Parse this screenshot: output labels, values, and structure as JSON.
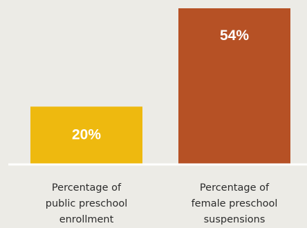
{
  "chart_data": {
    "type": "bar",
    "title": "",
    "xlabel": "",
    "ylabel": "",
    "categories": [
      [
        "Percentage of",
        "public preschool",
        "enrollment"
      ],
      [
        "Percentage of",
        "female preschool",
        "suspensions"
      ]
    ],
    "values": [
      20,
      54
    ],
    "value_labels": [
      "20%",
      "54%"
    ],
    "colors": [
      "#eeb90f",
      "#b65125"
    ],
    "ylim": [
      0,
      54
    ],
    "grid": false,
    "legend": "none"
  },
  "colors": {
    "background": "#ecebe6",
    "baseline": "#ffffff",
    "label_text": "#2b2b2b",
    "value_text": "#ffffff"
  }
}
